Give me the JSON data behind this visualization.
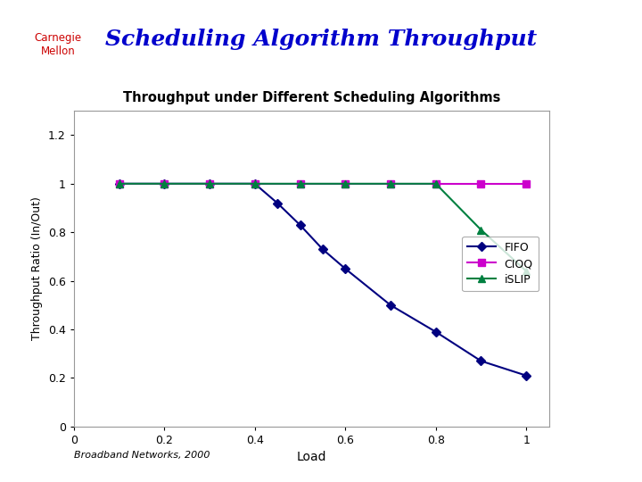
{
  "title": "Scheduling Algorithm Throughput",
  "subtitle": "Carnegie\nMellon",
  "chart_title": "Throughput under Different Scheduling Algorithms",
  "xlabel": "Load",
  "ylabel": "Throughput Ratio (In/Out)",
  "footer": "Broadband Networks, 2000",
  "xlim": [
    0,
    1.05
  ],
  "ylim": [
    0,
    1.3
  ],
  "xticks": [
    0,
    0.2,
    0.4,
    0.6,
    0.8,
    1.0
  ],
  "yticks": [
    0,
    0.2,
    0.4,
    0.6,
    0.8,
    1.0,
    1.2
  ],
  "bg_color": "#ffffff",
  "fifo_x": [
    0.1,
    0.2,
    0.3,
    0.4,
    0.45,
    0.5,
    0.55,
    0.6,
    0.7,
    0.8,
    0.9,
    1.0
  ],
  "fifo_y": [
    1.0,
    1.0,
    1.0,
    1.0,
    0.92,
    0.83,
    0.73,
    0.65,
    0.5,
    0.39,
    0.27,
    0.21
  ],
  "cioq_x": [
    0.1,
    0.2,
    0.3,
    0.4,
    0.5,
    0.6,
    0.7,
    0.8,
    0.9,
    1.0
  ],
  "cioq_y": [
    1.0,
    1.0,
    1.0,
    1.0,
    1.0,
    1.0,
    1.0,
    1.0,
    1.0,
    1.0
  ],
  "islip_x": [
    0.1,
    0.2,
    0.3,
    0.4,
    0.5,
    0.6,
    0.7,
    0.8,
    0.9,
    1.0
  ],
  "islip_y": [
    1.0,
    1.0,
    1.0,
    1.0,
    1.0,
    1.0,
    1.0,
    1.0,
    0.81,
    0.64
  ],
  "fifo_color": "#000080",
  "cioq_color": "#cc00cc",
  "islip_color": "#008040",
  "title_color": "#0000cc",
  "cmu_text_color": "#cc0000",
  "bar1_color": "#000080",
  "bar2_color": "#cc0000",
  "chart_border_color": "#999999",
  "legend_labels": [
    "FIFO",
    "CIOQ",
    "iSLIP"
  ]
}
